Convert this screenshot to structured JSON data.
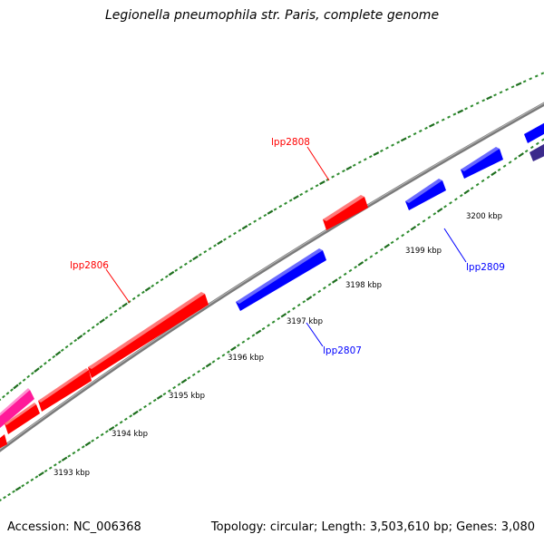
{
  "title": "Legionella pneumophila str. Paris, complete genome",
  "footer": {
    "accession": "Accession: NC_006368",
    "topology": "Topology: circular; Length: 3,503,610 bp; Genes: 3,080"
  },
  "colors": {
    "forward": "#ff0000",
    "reverse": "#0000ff",
    "forward_alt": "#ff1493",
    "reverse_alt": "#3b2a8c",
    "backbone": "#888888",
    "dots": "#1a7a1a"
  },
  "ticks": [
    "3193 kbp",
    "3194 kbp",
    "3195 kbp",
    "3196 kbp",
    "3197 kbp",
    "3198 kbp",
    "3199 kbp",
    "3200 kbp"
  ],
  "labels": {
    "g2806": "lpp2806",
    "g2807": "lpp2807",
    "g2808": "lpp2808",
    "g2809": "lpp2809"
  }
}
